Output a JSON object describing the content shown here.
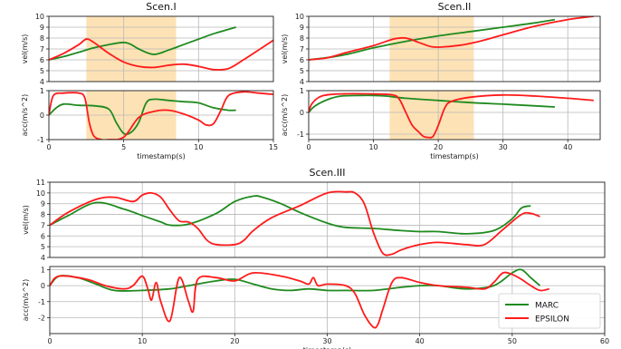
{
  "colors": {
    "marc": "#1f8a1f",
    "epsilon": "#ff1a1a",
    "highlight": "#fde2b5",
    "grid": "#b8b8b8"
  },
  "legend": {
    "position": "lower-right",
    "items": [
      {
        "name": "MARC",
        "color": "#1f8a1f"
      },
      {
        "name": "EPSILON",
        "color": "#ff1a1a"
      }
    ]
  },
  "chart_data": [
    {
      "id": "s1v",
      "type": "line",
      "title": "Scen.I",
      "ylabel": "vel(m/s)",
      "xlabel": "",
      "xlim": [
        0,
        15
      ],
      "ylim": [
        4,
        10
      ],
      "xticks": [],
      "yticks": [
        4,
        5,
        6,
        7,
        8,
        9,
        10
      ],
      "grid": true,
      "highlight": [
        2.5,
        8.5
      ],
      "series": [
        {
          "name": "MARC",
          "x": [
            0,
            1,
            2,
            3,
            4,
            5,
            5.5,
            6,
            7,
            8,
            9,
            10,
            11,
            12,
            12.5
          ],
          "y": [
            6.0,
            6.3,
            6.7,
            7.1,
            7.4,
            7.6,
            7.4,
            7.0,
            6.5,
            6.9,
            7.4,
            7.9,
            8.4,
            8.8,
            9.0
          ]
        },
        {
          "name": "EPSILON",
          "x": [
            0,
            1,
            2,
            2.5,
            3,
            4,
            5,
            6,
            7,
            8,
            9,
            10,
            11,
            12,
            13,
            14,
            15
          ],
          "y": [
            6.0,
            6.6,
            7.4,
            7.9,
            7.6,
            6.6,
            5.8,
            5.4,
            5.3,
            5.5,
            5.6,
            5.4,
            5.1,
            5.2,
            6.0,
            6.9,
            7.8
          ]
        }
      ]
    },
    {
      "id": "s1a",
      "type": "line",
      "title": "",
      "ylabel": "acc(m/s^2)",
      "xlabel": "timestamp(s)",
      "xlim": [
        0,
        15
      ],
      "ylim": [
        -1,
        1
      ],
      "xticks": [
        0,
        5,
        10,
        15
      ],
      "yticks": [
        -1,
        0,
        1
      ],
      "grid": true,
      "highlight": [
        2.5,
        8.5
      ],
      "series": [
        {
          "name": "MARC",
          "x": [
            0,
            0.5,
            1,
            2,
            3,
            4,
            4.5,
            5,
            5.5,
            6,
            6.5,
            7,
            8,
            9,
            10,
            11,
            12,
            12.5
          ],
          "y": [
            0.0,
            0.3,
            0.45,
            0.4,
            0.38,
            0.25,
            -0.3,
            -0.75,
            -0.7,
            -0.3,
            0.5,
            0.65,
            0.6,
            0.55,
            0.5,
            0.3,
            0.2,
            0.2
          ]
        },
        {
          "name": "EPSILON",
          "x": [
            0,
            0.3,
            1,
            2,
            2.4,
            2.7,
            3,
            3.5,
            4,
            5,
            6,
            7,
            8,
            9,
            10,
            10.5,
            11,
            11.5,
            12,
            13,
            14,
            15
          ],
          "y": [
            0.0,
            0.8,
            0.9,
            0.9,
            0.7,
            -0.3,
            -0.85,
            -1.0,
            -1.0,
            -0.9,
            -0.1,
            0.15,
            0.2,
            0.05,
            -0.2,
            -0.4,
            -0.35,
            0.2,
            0.8,
            0.95,
            0.9,
            0.85
          ]
        }
      ]
    },
    {
      "id": "s2v",
      "type": "line",
      "title": "Scen.II",
      "ylabel": "vel(m/s)",
      "xlabel": "",
      "xlim": [
        0,
        45
      ],
      "ylim": [
        4,
        10
      ],
      "xticks": [],
      "yticks": [
        4,
        5,
        6,
        7,
        8,
        9,
        10
      ],
      "grid": true,
      "highlight": [
        12.5,
        25.5
      ],
      "series": [
        {
          "name": "MARC",
          "x": [
            0,
            5,
            10,
            15,
            20,
            25,
            30,
            35,
            38
          ],
          "y": [
            6.0,
            6.4,
            7.1,
            7.7,
            8.2,
            8.6,
            9.0,
            9.4,
            9.7
          ]
        },
        {
          "name": "EPSILON",
          "x": [
            0,
            3,
            6,
            10,
            13,
            15,
            17,
            19,
            21,
            24,
            27,
            30,
            35,
            40,
            44
          ],
          "y": [
            6.0,
            6.2,
            6.7,
            7.3,
            7.9,
            8.0,
            7.6,
            7.2,
            7.2,
            7.4,
            7.8,
            8.3,
            9.1,
            9.7,
            10.0
          ]
        }
      ]
    },
    {
      "id": "s2a",
      "type": "line",
      "title": "",
      "ylabel": "acc(m/s^2)",
      "xlabel": "timestamp(s)",
      "xlim": [
        0,
        45
      ],
      "ylim": [
        -1.25,
        1
      ],
      "xticks": [
        0,
        10,
        20,
        30,
        40
      ],
      "yticks": [
        -1,
        0,
        1
      ],
      "grid": true,
      "highlight": [
        12.5,
        25.5
      ],
      "series": [
        {
          "name": "MARC",
          "x": [
            0,
            1,
            3,
            5,
            8,
            10,
            12,
            15,
            20,
            25,
            30,
            35,
            38
          ],
          "y": [
            0.0,
            0.3,
            0.6,
            0.75,
            0.78,
            0.78,
            0.75,
            0.65,
            0.55,
            0.45,
            0.38,
            0.3,
            0.25
          ]
        },
        {
          "name": "EPSILON",
          "x": [
            0,
            0.5,
            2,
            5,
            10,
            13,
            14,
            15,
            16,
            17,
            17.7,
            18.5,
            19.2,
            20,
            21,
            22,
            25,
            30,
            35,
            40,
            44
          ],
          "y": [
            0.0,
            0.4,
            0.75,
            0.85,
            0.85,
            0.8,
            0.6,
            0.0,
            -0.6,
            -0.9,
            -1.1,
            -1.15,
            -1.1,
            -0.6,
            0.2,
            0.5,
            0.7,
            0.8,
            0.75,
            0.65,
            0.55
          ]
        }
      ]
    },
    {
      "id": "s3v",
      "type": "line",
      "title": "Scen.III",
      "ylabel": "vel(m/s)",
      "xlabel": "",
      "xlim": [
        0,
        60
      ],
      "ylim": [
        4,
        11
      ],
      "xticks": [],
      "yticks": [
        4,
        5,
        6,
        7,
        8,
        9,
        10,
        11
      ],
      "grid": true,
      "series": [
        {
          "name": "MARC",
          "x": [
            0,
            2,
            5,
            8,
            10,
            12,
            13,
            15,
            18,
            20,
            22,
            23,
            25,
            27,
            30,
            32,
            35,
            38,
            40,
            42,
            45,
            48,
            50,
            51,
            52
          ],
          "y": [
            7.0,
            7.9,
            9.1,
            8.5,
            7.9,
            7.3,
            7.0,
            7.1,
            8.1,
            9.2,
            9.7,
            9.6,
            9.0,
            8.2,
            7.2,
            6.8,
            6.7,
            6.5,
            6.4,
            6.4,
            6.2,
            6.5,
            7.6,
            8.6,
            8.8
          ]
        },
        {
          "name": "EPSILON",
          "x": [
            0,
            2,
            5,
            7,
            9,
            10,
            11,
            12,
            13,
            14,
            15,
            16,
            17,
            18,
            20,
            21,
            22,
            24,
            27,
            30,
            32,
            33,
            34,
            35,
            36,
            37,
            38,
            40,
            42,
            45,
            47,
            49,
            51,
            52,
            53
          ],
          "y": [
            7.0,
            8.2,
            9.4,
            9.6,
            9.2,
            9.8,
            10.0,
            9.6,
            8.4,
            7.4,
            7.3,
            6.7,
            5.6,
            5.2,
            5.2,
            5.6,
            6.5,
            7.7,
            8.8,
            10.0,
            10.1,
            10.0,
            9.0,
            6.3,
            4.4,
            4.3,
            4.7,
            5.2,
            5.4,
            5.2,
            5.2,
            6.6,
            8.0,
            8.1,
            7.8
          ]
        }
      ]
    },
    {
      "id": "s3a",
      "type": "line",
      "title": "",
      "ylabel": "acc(m/s^2)",
      "xlabel": "timestamp(s)",
      "xlim": [
        0,
        60
      ],
      "ylim": [
        -3,
        1.2
      ],
      "xticks": [
        0,
        10,
        20,
        30,
        40,
        50,
        60
      ],
      "yticks": [
        -2,
        -1,
        0,
        1
      ],
      "grid": true,
      "series": [
        {
          "name": "MARC",
          "x": [
            0,
            1,
            3,
            5,
            7,
            10,
            13,
            15,
            18,
            20,
            22,
            24,
            26,
            28,
            30,
            32,
            35,
            38,
            40,
            42,
            45,
            48,
            50,
            51,
            52,
            53
          ],
          "y": [
            0.0,
            0.6,
            0.5,
            0.1,
            -0.3,
            -0.3,
            -0.2,
            0.0,
            0.3,
            0.4,
            0.1,
            -0.2,
            -0.3,
            -0.2,
            -0.3,
            -0.3,
            -0.3,
            -0.1,
            0.0,
            0.0,
            -0.2,
            0.0,
            0.8,
            1.0,
            0.5,
            0.0
          ]
        },
        {
          "name": "EPSILON",
          "x": [
            0,
            1,
            4,
            6,
            8,
            9,
            10,
            10.6,
            11,
            11.5,
            12,
            13,
            14,
            15,
            15.5,
            16,
            18,
            20,
            22,
            25,
            27,
            28,
            28.5,
            29,
            30,
            32,
            33,
            34,
            35,
            35.5,
            36,
            37,
            38,
            40,
            42,
            45,
            47,
            48,
            49,
            50,
            51,
            52,
            53,
            54
          ],
          "y": [
            0.0,
            0.6,
            0.4,
            0.0,
            -0.2,
            0.0,
            0.6,
            -0.2,
            -0.9,
            0.2,
            -1.0,
            -2.2,
            0.5,
            -1.0,
            -1.6,
            0.4,
            0.5,
            0.3,
            0.8,
            0.6,
            0.3,
            0.1,
            0.5,
            0.0,
            0.1,
            0.0,
            -0.5,
            -1.8,
            -2.6,
            -2.4,
            -1.5,
            0.2,
            0.5,
            0.2,
            0.0,
            -0.1,
            -0.2,
            0.2,
            0.8,
            0.7,
            0.4,
            0.0,
            -0.3,
            -0.2
          ]
        }
      ]
    }
  ]
}
